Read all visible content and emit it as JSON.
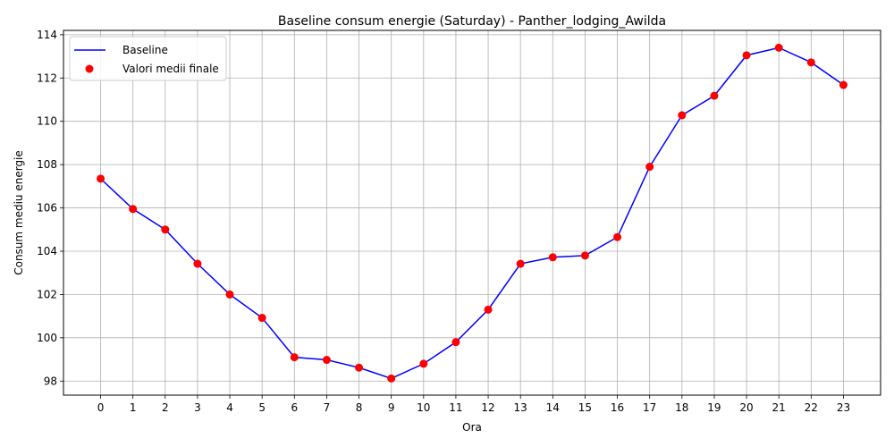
{
  "chart_data": {
    "type": "line",
    "title": "Baseline consum energie (Saturday) - Panther_lodging_Awilda",
    "xlabel": "Ora",
    "ylabel": "Consum mediu energie",
    "x": [
      0,
      1,
      2,
      3,
      4,
      5,
      6,
      7,
      8,
      9,
      10,
      11,
      12,
      13,
      14,
      15,
      16,
      17,
      18,
      19,
      20,
      21,
      22,
      23
    ],
    "xlim": [
      -1.15,
      24.15
    ],
    "ylim": [
      97.35,
      114.2
    ],
    "yticks": [
      98,
      100,
      102,
      104,
      106,
      108,
      110,
      112,
      114
    ],
    "grid": true,
    "legend_position": "top-left",
    "series": [
      {
        "name": "Baseline",
        "kind": "line",
        "color": "#0000ff",
        "values": [
          107.35,
          105.95,
          105.0,
          103.42,
          102.0,
          100.92,
          99.1,
          98.98,
          98.62,
          98.12,
          98.8,
          99.8,
          101.3,
          103.42,
          103.72,
          103.8,
          104.65,
          107.9,
          110.28,
          111.18,
          113.05,
          113.4,
          112.72,
          111.68
        ]
      },
      {
        "name": "Valori medii finale",
        "kind": "scatter",
        "color": "#ff0000",
        "values": [
          107.35,
          105.95,
          105.0,
          103.42,
          102.0,
          100.92,
          99.1,
          98.98,
          98.62,
          98.12,
          98.8,
          99.8,
          101.3,
          103.42,
          103.72,
          103.8,
          104.65,
          107.9,
          110.28,
          111.18,
          113.05,
          113.4,
          112.72,
          111.68
        ]
      }
    ]
  }
}
